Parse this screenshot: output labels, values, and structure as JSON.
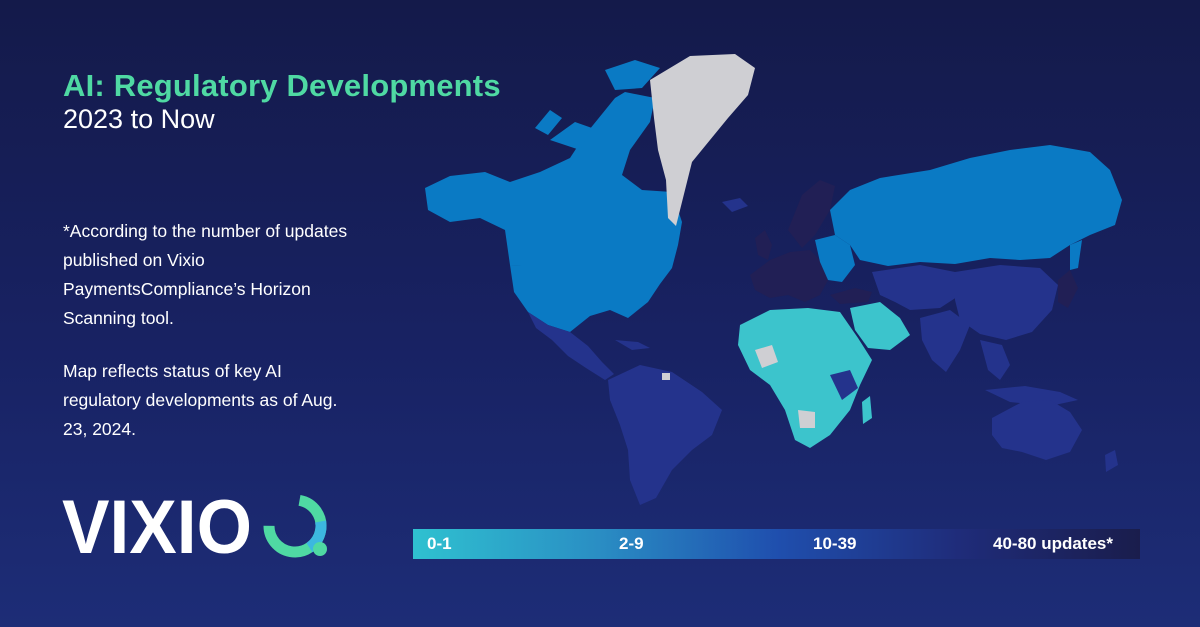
{
  "header": {
    "title": "AI: Regulatory Developments",
    "subtitle": "2023 to Now"
  },
  "notes": {
    "source": "*According to the number of updates published on Vixio PaymentsCompliance’s Horizon Scanning tool.",
    "status": "Map reflects status of key AI regulatory developments as of Aug. 23, 2024."
  },
  "brand": {
    "logo_text": "VIXIO"
  },
  "legend": {
    "ranges": [
      "0-1",
      "2-9",
      "10-39",
      "40-80 updates*"
    ]
  },
  "colors": {
    "title": "#4fd9a3",
    "tier_0_1": "#3cc4cc",
    "tier_2_9": "#0a7ac4",
    "tier_10_39": "#24338c",
    "tier_40_80": "#211f55",
    "no_data": "#cfcfd3"
  }
}
